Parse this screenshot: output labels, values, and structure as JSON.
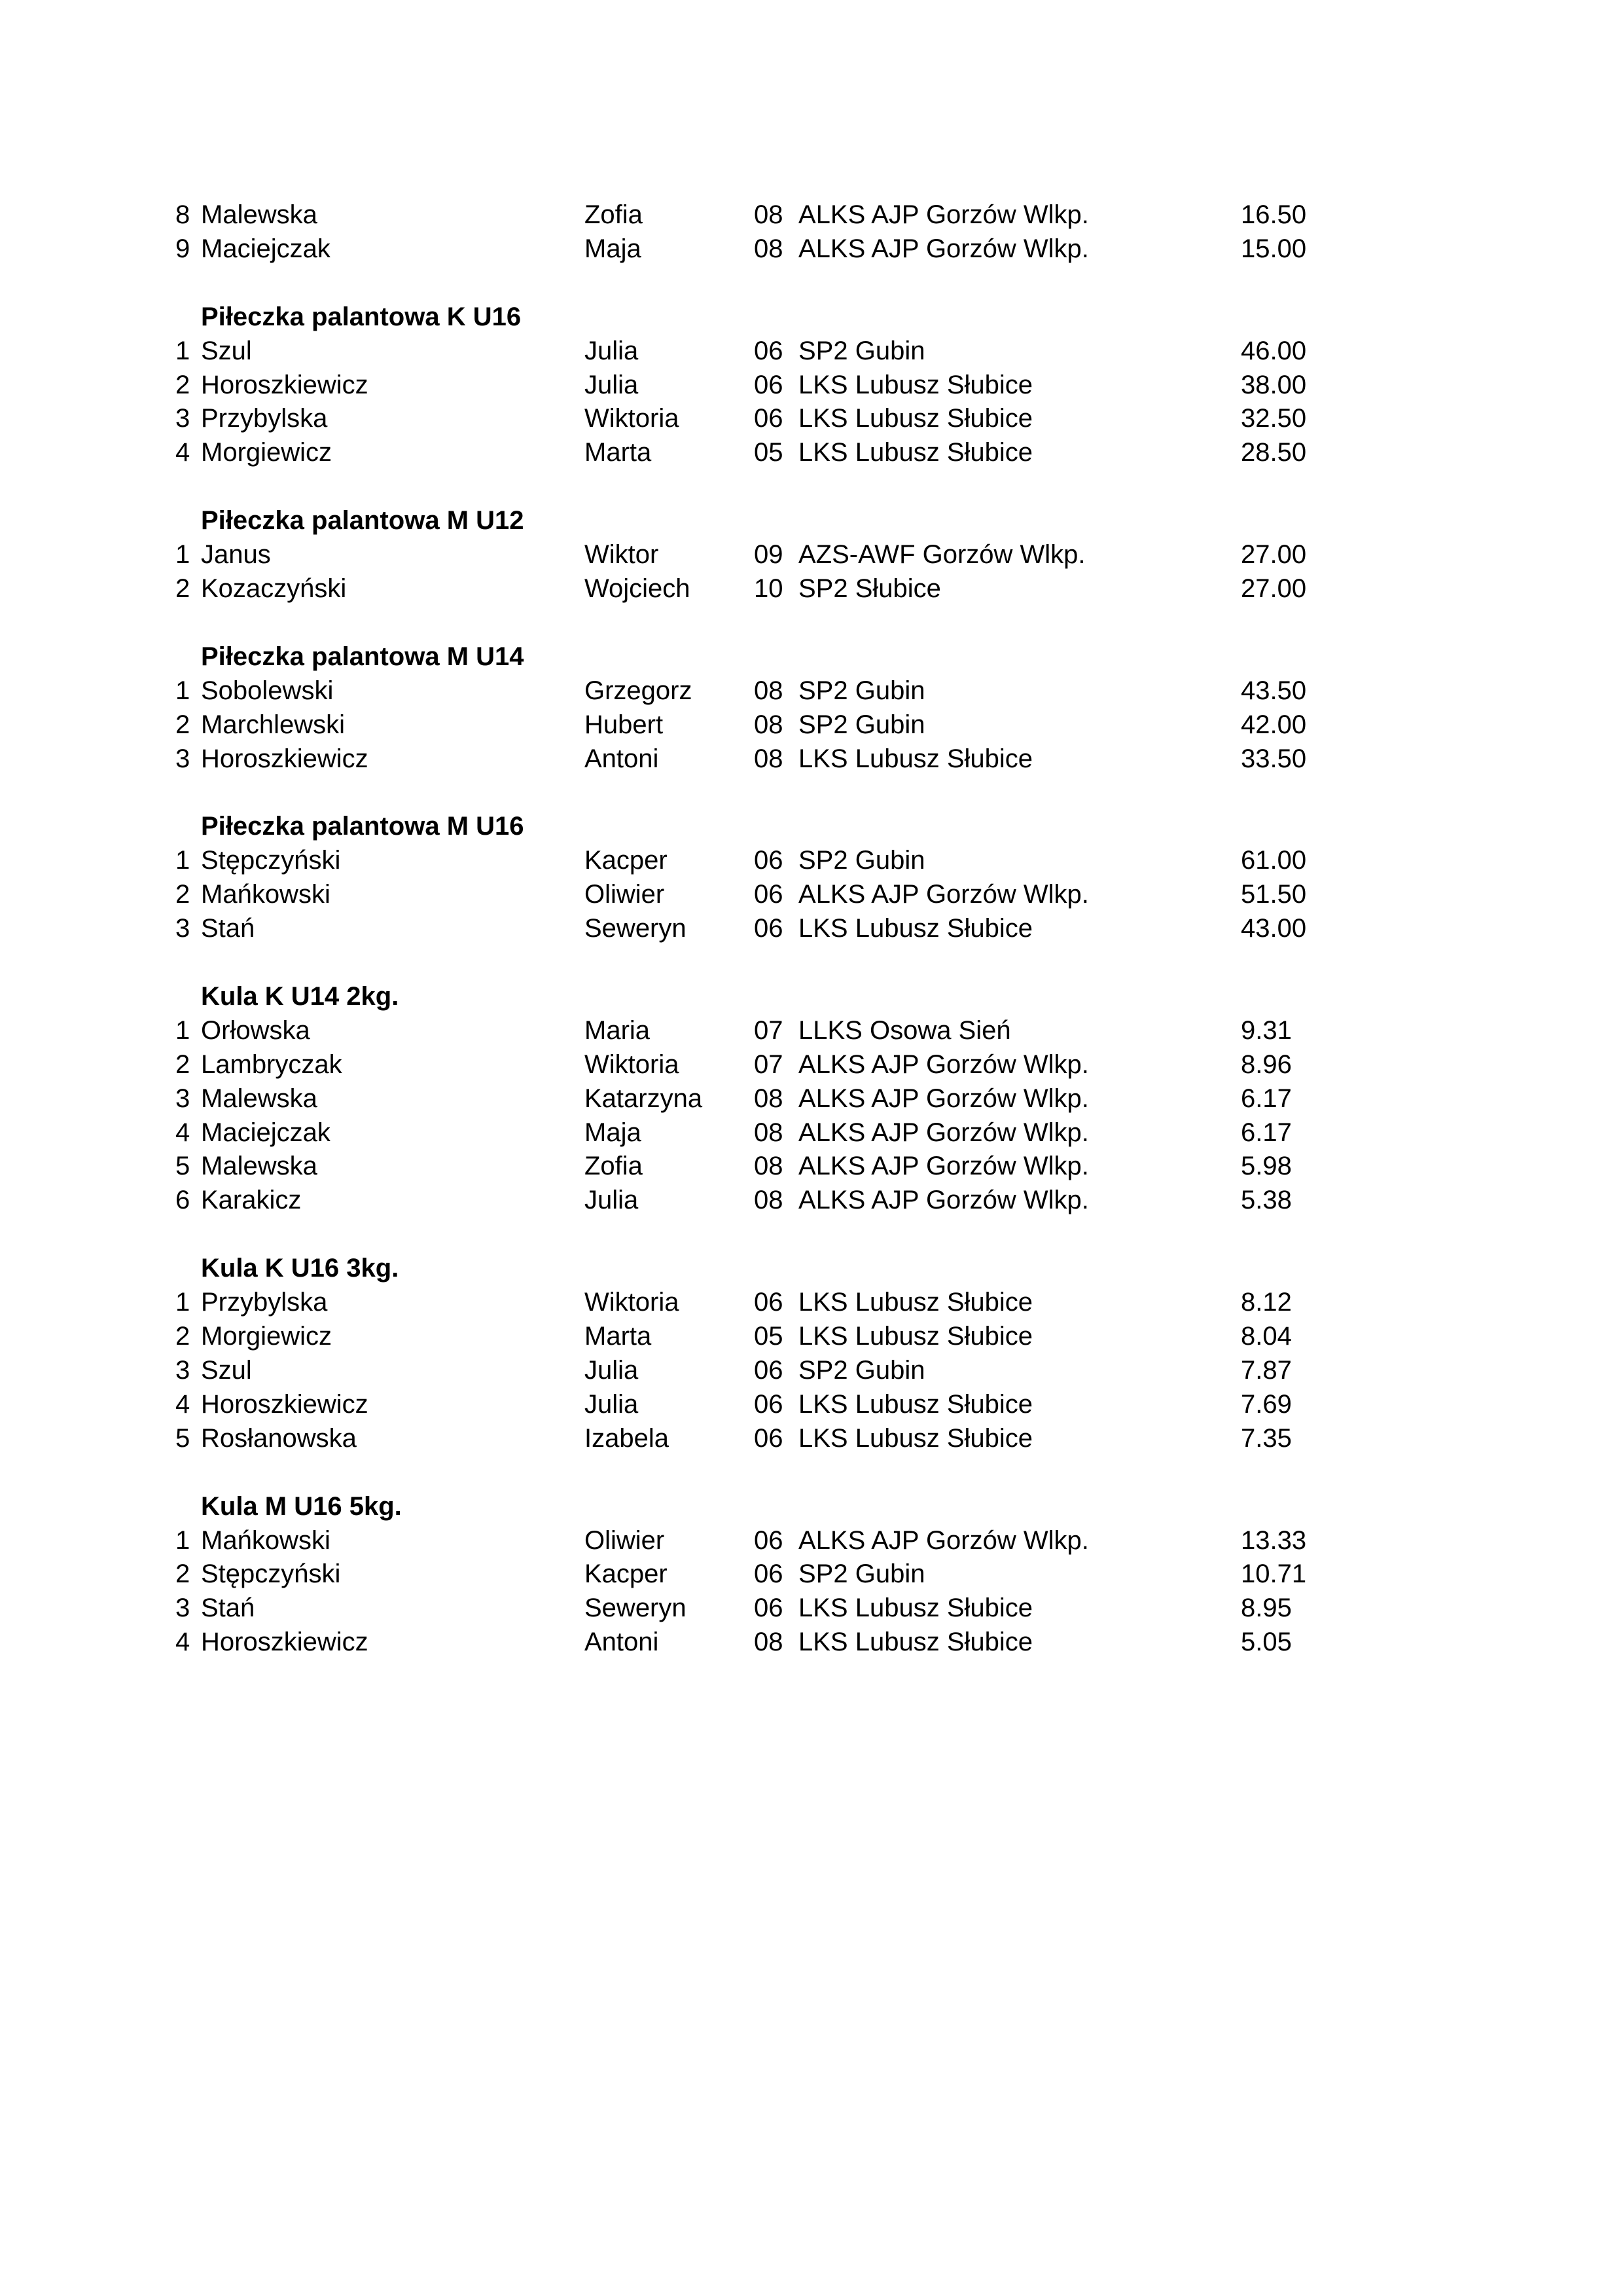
{
  "sections": [
    {
      "title": "",
      "rows": [
        {
          "place": "8",
          "surname": "Malewska",
          "first_name": "Zofia",
          "year": "08",
          "club": "ALKS AJP Gorzów Wlkp.",
          "result": "16.50"
        },
        {
          "place": "9",
          "surname": "Maciejczak",
          "first_name": "Maja",
          "year": "08",
          "club": "ALKS AJP Gorzów Wlkp.",
          "result": "15.00"
        }
      ]
    },
    {
      "title": "Piłeczka palantowa K U16",
      "rows": [
        {
          "place": "1",
          "surname": "Szul",
          "first_name": "Julia",
          "year": "06",
          "club": "SP2 Gubin",
          "result": "46.00"
        },
        {
          "place": "2",
          "surname": "Horoszkiewicz",
          "first_name": "Julia",
          "year": "06",
          "club": "LKS Lubusz Słubice",
          "result": "38.00"
        },
        {
          "place": "3",
          "surname": "Przybylska",
          "first_name": "Wiktoria",
          "year": "06",
          "club": "LKS Lubusz Słubice",
          "result": "32.50"
        },
        {
          "place": "4",
          "surname": "Morgiewicz",
          "first_name": "Marta",
          "year": "05",
          "club": "LKS Lubusz Słubice",
          "result": "28.50"
        }
      ]
    },
    {
      "title": "Piłeczka palantowa M U12",
      "rows": [
        {
          "place": "1",
          "surname": "Janus",
          "first_name": "Wiktor",
          "year": "09",
          "club": "AZS-AWF Gorzów Wlkp.",
          "result": "27.00"
        },
        {
          "place": "2",
          "surname": "Kozaczyński",
          "first_name": "Wojciech",
          "year": "10",
          "club": "SP2 Słubice",
          "result": "27.00"
        }
      ]
    },
    {
      "title": "Piłeczka palantowa M U14",
      "rows": [
        {
          "place": "1",
          "surname": "Sobolewski",
          "first_name": "Grzegorz",
          "year": "08",
          "club": "SP2 Gubin",
          "result": "43.50"
        },
        {
          "place": "2",
          "surname": "Marchlewski",
          "first_name": "Hubert",
          "year": "08",
          "club": "SP2 Gubin",
          "result": "42.00"
        },
        {
          "place": "3",
          "surname": "Horoszkiewicz",
          "first_name": "Antoni",
          "year": "08",
          "club": "LKS Lubusz Słubice",
          "result": "33.50"
        }
      ]
    },
    {
      "title": "Piłeczka palantowa M U16",
      "rows": [
        {
          "place": "1",
          "surname": "Stępczyński",
          "first_name": "Kacper",
          "year": "06",
          "club": "SP2 Gubin",
          "result": "61.00"
        },
        {
          "place": "2",
          "surname": "Mańkowski",
          "first_name": "Oliwier",
          "year": "06",
          "club": "ALKS AJP Gorzów Wlkp.",
          "result": "51.50"
        },
        {
          "place": "3",
          "surname": "Stań",
          "first_name": "Seweryn",
          "year": "06",
          "club": "LKS Lubusz Słubice",
          "result": "43.00"
        }
      ]
    },
    {
      "title": "Kula K U14 2kg.",
      "rows": [
        {
          "place": "1",
          "surname": "Orłowska",
          "first_name": "Maria",
          "year": "07",
          "club": "LLKS Osowa Sień",
          "result": "9.31"
        },
        {
          "place": "2",
          "surname": "Lambryczak",
          "first_name": "Wiktoria",
          "year": "07",
          "club": "ALKS AJP Gorzów Wlkp.",
          "result": "8.96"
        },
        {
          "place": "3",
          "surname": "Malewska",
          "first_name": "Katarzyna",
          "year": "08",
          "club": "ALKS AJP Gorzów Wlkp.",
          "result": "6.17"
        },
        {
          "place": "4",
          "surname": "Maciejczak",
          "first_name": "Maja",
          "year": "08",
          "club": "ALKS AJP Gorzów Wlkp.",
          "result": "6.17"
        },
        {
          "place": "5",
          "surname": "Malewska",
          "first_name": "Zofia",
          "year": "08",
          "club": "ALKS AJP Gorzów Wlkp.",
          "result": "5.98"
        },
        {
          "place": "6",
          "surname": "Karakicz",
          "first_name": "Julia",
          "year": "08",
          "club": "ALKS AJP Gorzów Wlkp.",
          "result": "5.38"
        }
      ]
    },
    {
      "title": "Kula K U16 3kg.",
      "rows": [
        {
          "place": "1",
          "surname": "Przybylska",
          "first_name": "Wiktoria",
          "year": "06",
          "club": "LKS Lubusz Słubice",
          "result": "8.12"
        },
        {
          "place": "2",
          "surname": "Morgiewicz",
          "first_name": "Marta",
          "year": "05",
          "club": "LKS Lubusz Słubice",
          "result": "8.04"
        },
        {
          "place": "3",
          "surname": "Szul",
          "first_name": "Julia",
          "year": "06",
          "club": "SP2 Gubin",
          "result": "7.87"
        },
        {
          "place": "4",
          "surname": "Horoszkiewicz",
          "first_name": "Julia",
          "year": "06",
          "club": "LKS Lubusz Słubice",
          "result": "7.69"
        },
        {
          "place": "5",
          "surname": "Rosłanowska",
          "first_name": "Izabela",
          "year": "06",
          "club": "LKS Lubusz Słubice",
          "result": "7.35"
        }
      ]
    },
    {
      "title": "Kula M U16 5kg.",
      "rows": [
        {
          "place": "1",
          "surname": "Mańkowski",
          "first_name": "Oliwier",
          "year": "06",
          "club": "ALKS AJP Gorzów Wlkp.",
          "result": "13.33"
        },
        {
          "place": "2",
          "surname": "Stępczyński",
          "first_name": "Kacper",
          "year": "06",
          "club": "SP2 Gubin",
          "result": "10.71"
        },
        {
          "place": "3",
          "surname": "Stań",
          "first_name": "Seweryn",
          "year": "06",
          "club": "LKS Lubusz Słubice",
          "result": "8.95"
        },
        {
          "place": "4",
          "surname": "Horoszkiewicz",
          "first_name": "Antoni",
          "year": "08",
          "club": "LKS Lubusz Słubice",
          "result": "5.05"
        }
      ]
    }
  ]
}
